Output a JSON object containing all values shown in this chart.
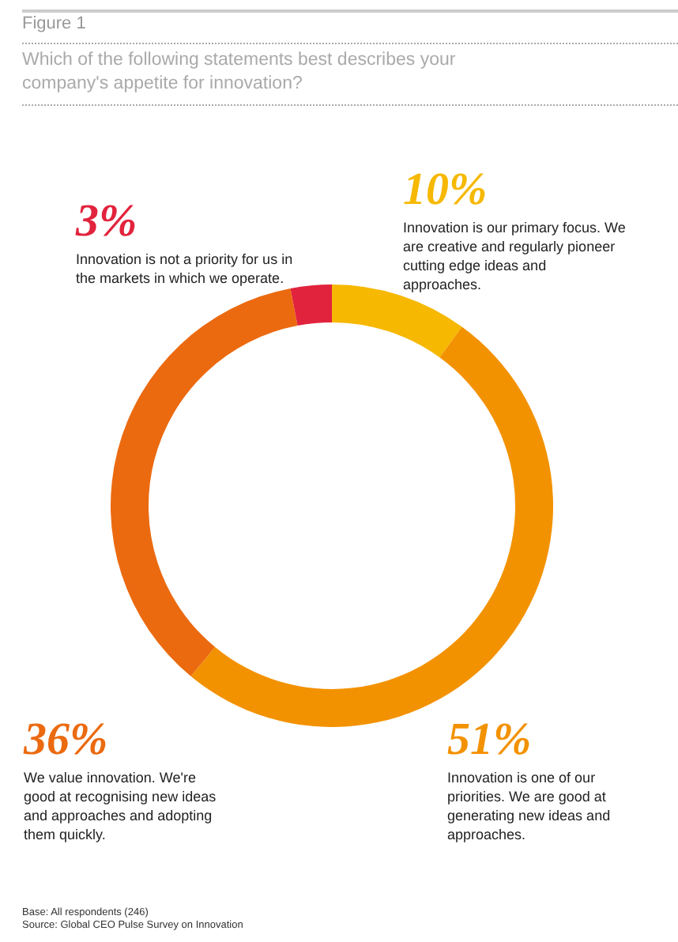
{
  "chart_data": {
    "type": "donut",
    "title": "Figure 1",
    "subtitle": "Which of the following statements best describes your company's appetite for innovation?",
    "categories": [
      "Innovation is our primary focus. We are creative and regularly pioneer cutting edge ideas and approaches.",
      "Innovation is one of our priorities. We are good at generating new ideas and approaches.",
      "We value innovation. We're good at recognising new ideas and approaches and adopting them quickly.",
      "Innovation is not a priority for us in the markets in which we operate."
    ],
    "values": [
      10,
      51,
      36,
      3
    ],
    "value_labels": [
      "10%",
      "51%",
      "36%",
      "3%"
    ],
    "colors": [
      "#f6b800",
      "#f39200",
      "#eb6a10",
      "#e2233d"
    ],
    "annotations": [
      "Base: All respondents (246)",
      "Source: Global CEO Pulse Survey on Innovation"
    ]
  }
}
